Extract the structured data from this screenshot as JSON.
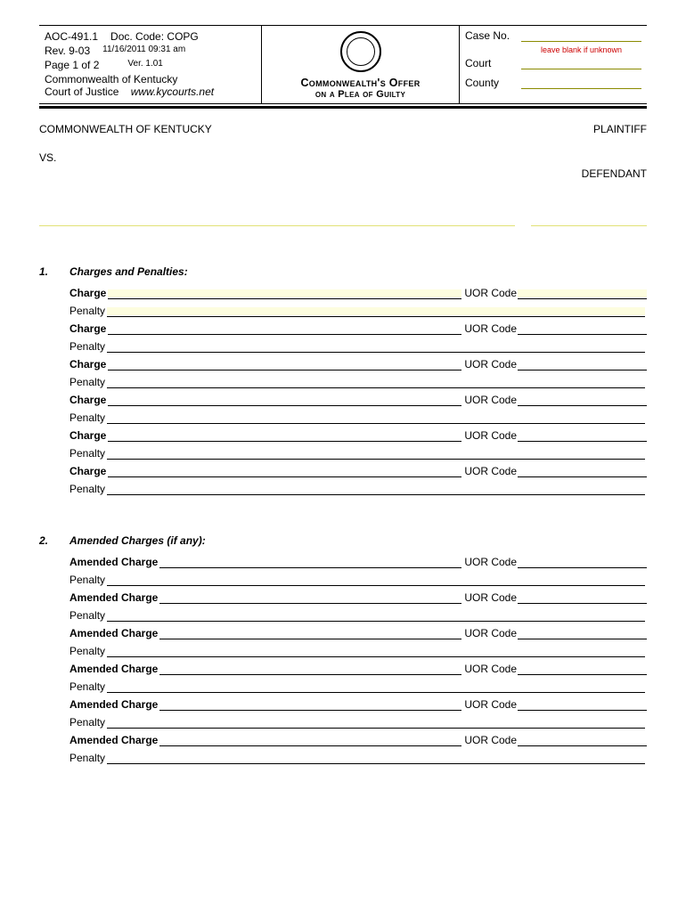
{
  "header": {
    "left": {
      "form_no": "AOC-491.1",
      "doc_code_label": "Doc. Code:",
      "doc_code": "COPG",
      "rev": "Rev. 9-03",
      "datetime": "11/16/2011 09:31 am",
      "page": "Page 1 of 2",
      "ver": "Ver. 1.01",
      "org1": "Commonwealth of Kentucky",
      "org2": "Court of Justice",
      "website": "www.kycourts.net"
    },
    "mid": {
      "title_main": "Commonwealth's Offer",
      "title_sub": "on a Plea of Guilty"
    },
    "right": {
      "case_no_label": "Case No.",
      "hint": "leave blank if unknown",
      "court_label": "Court",
      "county_label": "County"
    }
  },
  "parties": {
    "plaintiff_name": "COMMONWEALTH OF KENTUCKY",
    "plaintiff_role": "PLAINTIFF",
    "vs": "VS.",
    "defendant_role": "DEFENDANT"
  },
  "sections": {
    "s1": {
      "num": "1.",
      "title": "Charges and Penalties:",
      "charge_label": "Charge",
      "penalty_label": "Penalty",
      "uor_label": "UOR  Code",
      "count": 6
    },
    "s2": {
      "num": "2.",
      "title": "Amended Charges (if any):",
      "charge_label": "Amended Charge",
      "penalty_label": "Penalty",
      "uor_label": "UOR  Code",
      "count": 6
    }
  },
  "colors": {
    "highlight": "#fbfbc4",
    "yellow_line": "#e2e277",
    "hint_red": "#cc0000"
  }
}
